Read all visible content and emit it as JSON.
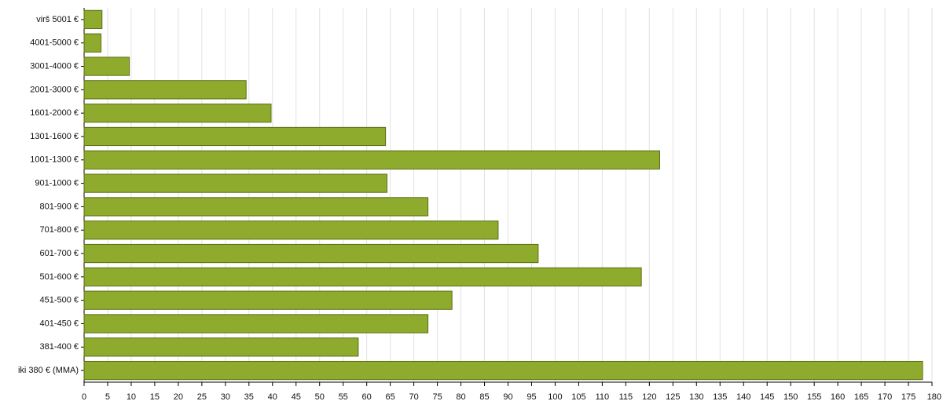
{
  "chart_data": {
    "type": "bar",
    "orientation": "horizontal",
    "categories": [
      "virš 5001 €",
      "4001-5000 €",
      "3001-4000 €",
      "2001-3000 €",
      "1601-2000 €",
      "1301-1600 €",
      "1001-1300 €",
      "901-1000 €",
      "801-900 €",
      "701-800 €",
      "601-700 €",
      "501-600 €",
      "451-500 €",
      "401-450 €",
      "381-400 €",
      "iki 380 € (MMA)"
    ],
    "values": [
      3.8,
      3.6,
      9.6,
      34.4,
      39.7,
      64,
      122.2,
      64.3,
      73,
      87.9,
      96.4,
      118.3,
      78.1,
      73,
      58.2,
      178
    ],
    "color": "#8fab2e",
    "xlim": [
      0,
      180
    ],
    "xticks": [
      0,
      5,
      10,
      15,
      20,
      25,
      30,
      35,
      40,
      45,
      50,
      55,
      60,
      65,
      70,
      75,
      80,
      85,
      90,
      95,
      100,
      105,
      110,
      115,
      120,
      125,
      130,
      135,
      140,
      145,
      150,
      155,
      160,
      165,
      170,
      175,
      180
    ],
    "grid": true
  }
}
